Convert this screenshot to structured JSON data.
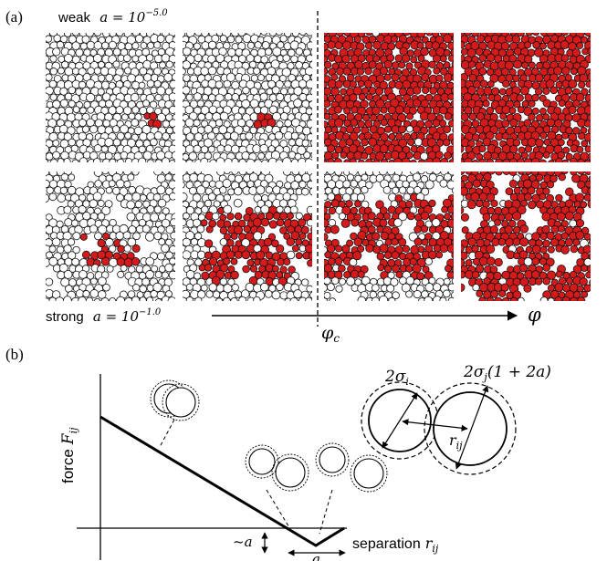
{
  "panel_a": {
    "label": "(a)",
    "weak_label": "weak",
    "weak_value": "a = 10",
    "weak_exp": "−5.0",
    "strong_label": "strong",
    "strong_value": "a = 10",
    "strong_exp": "−1.0",
    "phi_c": "φ",
    "phi_c_sub": "c",
    "phi": "φ",
    "colors": {
      "cluster": "#d41a1a",
      "free": "#ffffff",
      "outline": "#111111"
    },
    "snapshots": [
      {
        "row": "weak",
        "col": 1,
        "phase": "sparse",
        "cluster_fraction": 0.02
      },
      {
        "row": "weak",
        "col": 2,
        "phase": "sparse",
        "cluster_fraction": 0.03
      },
      {
        "row": "weak",
        "col": 3,
        "phase": "percolated",
        "cluster_fraction": 0.99
      },
      {
        "row": "weak",
        "col": 4,
        "phase": "percolated",
        "cluster_fraction": 1.0
      },
      {
        "row": "strong",
        "col": 1,
        "phase": "gel",
        "cluster_fraction": 0.15
      },
      {
        "row": "strong",
        "col": 2,
        "phase": "gel",
        "cluster_fraction": 0.45
      },
      {
        "row": "strong",
        "col": 3,
        "phase": "gel",
        "cluster_fraction": 0.75
      },
      {
        "row": "strong",
        "col": 4,
        "phase": "gel",
        "cluster_fraction": 0.95
      }
    ]
  },
  "panel_b": {
    "label": "(b)",
    "ylabel": "force",
    "ylabel_sym": "F",
    "ylabel_sub": "ij",
    "xlabel": "separation",
    "xlabel_sym": "r",
    "xlabel_sub": "ij",
    "approx_a": "~a",
    "a_width": "a",
    "two_sigma_i": "2σ",
    "two_sigma_i_sub": "i",
    "two_sigma_j": "2σ",
    "two_sigma_j_sub": "j",
    "two_sigma_j_factor": "(1 + 2a)",
    "r_ij": "r",
    "r_ij_sub": "ij"
  }
}
